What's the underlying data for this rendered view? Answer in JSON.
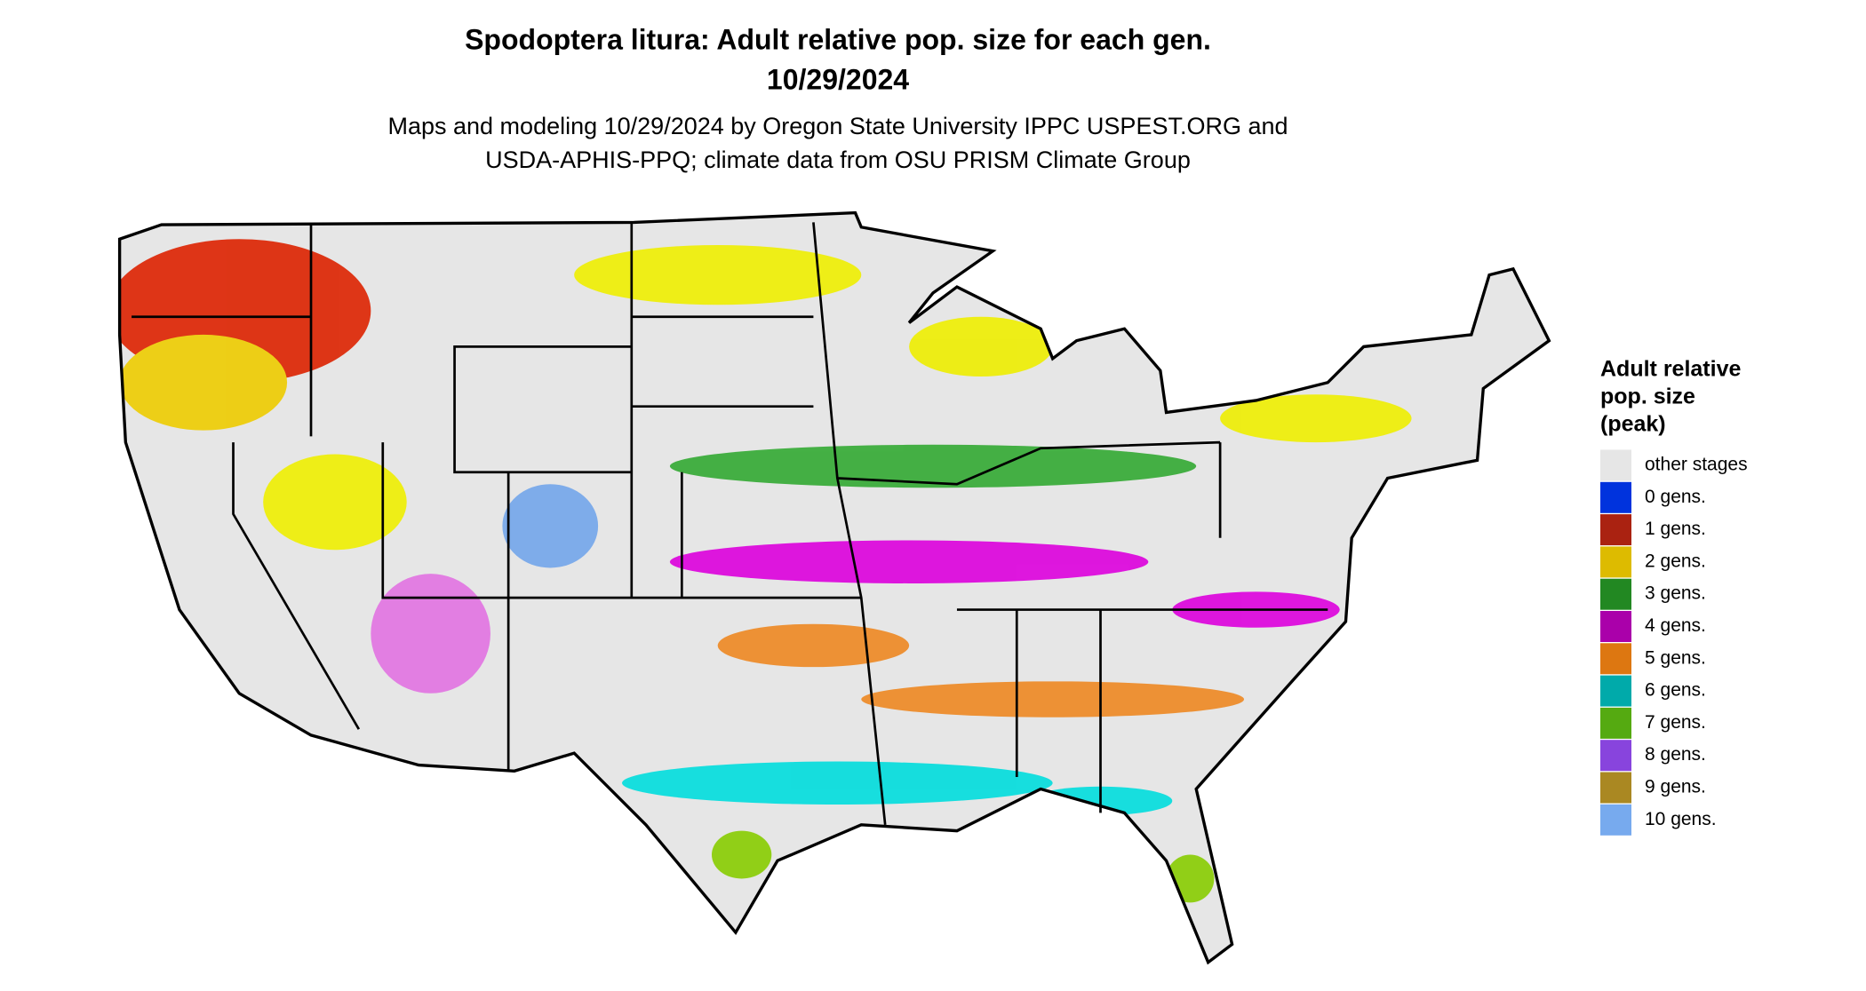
{
  "header": {
    "title": [
      "Spodoptera litura: Adult relative pop. size for each gen.",
      "10/29/2024"
    ],
    "subtitle": [
      "Maps and modeling 10/29/2024 by Oregon State University IPPC USPEST.ORG and",
      "USDA-APHIS-PPQ; climate data from OSU PRISM Climate Group"
    ]
  },
  "legend": {
    "title": [
      "Adult relative",
      "pop. size",
      "(peak)"
    ],
    "items": [
      {
        "label": "other stages",
        "color": "#e6e6e6"
      },
      {
        "label": "0 gens.",
        "color": "#0033dd"
      },
      {
        "label": "1 gens.",
        "color": "#aa2211"
      },
      {
        "label": "2 gens.",
        "color": "#ddbb00"
      },
      {
        "label": "3 gens.",
        "color": "#228822"
      },
      {
        "label": "4 gens.",
        "color": "#aa00aa"
      },
      {
        "label": "5 gens.",
        "color": "#dd7711"
      },
      {
        "label": "6 gens.",
        "color": "#00aaaa"
      },
      {
        "label": "7 gens.",
        "color": "#55aa11"
      },
      {
        "label": "8 gens.",
        "color": "#8844dd"
      },
      {
        "label": "9 gens.",
        "color": "#aa8822"
      },
      {
        "label": "10 gens.",
        "color": "#77aaee"
      }
    ]
  }
}
